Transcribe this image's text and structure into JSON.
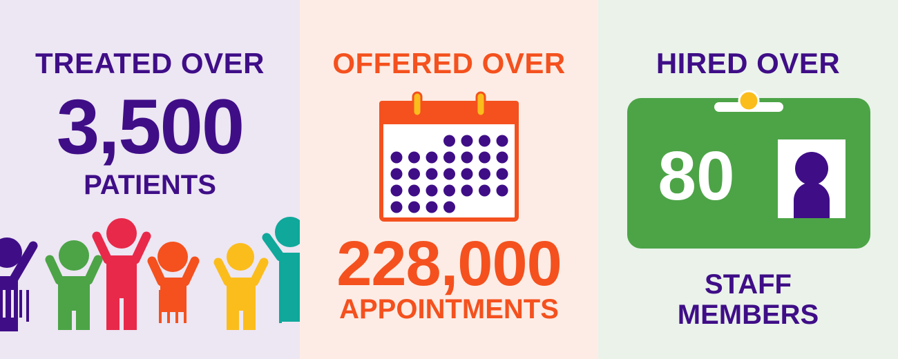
{
  "panels": {
    "patients": {
      "heading": "TREATED OVER",
      "number": "3,500",
      "label": "PATIENTS",
      "bg_color": "#ede6f3",
      "icon": "children-group-icon"
    },
    "appointments": {
      "heading": "OFFERED OVER",
      "number": "228,000",
      "label": "APPOINTMENTS",
      "bg_color": "#fdece5",
      "icon": "calendar-icon"
    },
    "staff": {
      "heading": "HIRED OVER",
      "number": "80",
      "label_line1": "STAFF",
      "label_line2": "MEMBERS",
      "bg_color": "#eaf2ea",
      "icon": "id-badge-icon"
    }
  },
  "colors": {
    "purple": "#3f0e87",
    "orange": "#f4511e",
    "green": "#4ca446",
    "yellow": "#fbbd1c",
    "red": "#e8294a",
    "teal": "#0fa89b"
  }
}
